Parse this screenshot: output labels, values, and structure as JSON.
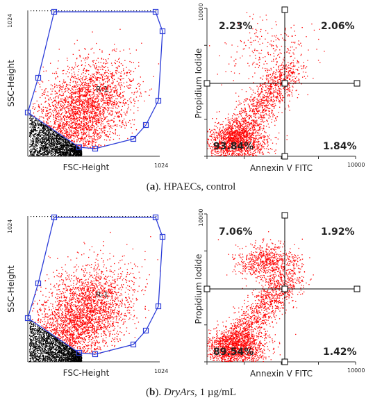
{
  "panels": [
    {
      "caption": [
        {
          "text": "(",
          "style": "normal"
        },
        {
          "text": "a",
          "style": "bold"
        },
        {
          "text": "). HPAECs, control",
          "style": "normal"
        }
      ],
      "left": {
        "y_max_label": "1024",
        "y_label": "SSC-Height",
        "x_label": "FSC-Height",
        "x_max_label": "1024",
        "gate_label": "R-1"
      },
      "right": {
        "y_max_label": "10000",
        "y_label": "Propidium Iodide",
        "x_label": "Annexin V FITC",
        "x_max_label": "10000",
        "quadrants": [
          "2.23%",
          "2.06%",
          "93.84%",
          "1.84%"
        ]
      }
    },
    {
      "caption": [
        {
          "text": "(",
          "style": "normal"
        },
        {
          "text": "b",
          "style": "bold"
        },
        {
          "text": "). ",
          "style": "normal"
        },
        {
          "text": "DryArs,",
          "style": "italic"
        },
        {
          "text": " 1 µg/mL",
          "style": "normal"
        }
      ],
      "left": {
        "y_max_label": "1024",
        "y_label": "SSC-Height",
        "x_label": "FSC-Height",
        "x_max_label": "1024",
        "gate_label": "R-1"
      },
      "right": {
        "y_max_label": "10000",
        "y_label": "Propidium Iodide",
        "x_label": "Annexin V FITC",
        "x_max_label": "10000",
        "quadrants": [
          "7.06%",
          "1.92%",
          "89.54%",
          "1.42%"
        ]
      }
    }
  ]
}
